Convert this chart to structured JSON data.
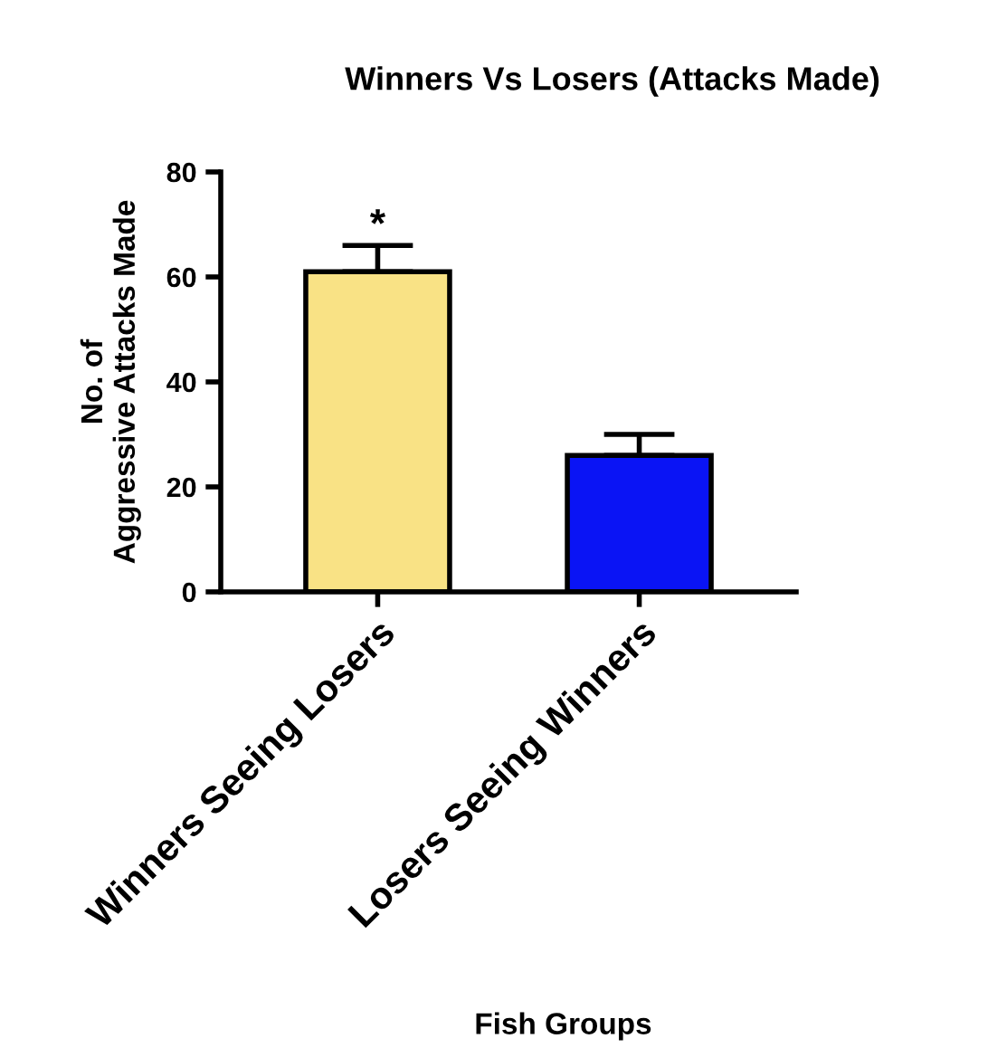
{
  "chart_data": {
    "type": "bar",
    "title": "Winners Vs Losers (Attacks Made)",
    "xlabel": "Fish Groups",
    "ylabel": "No. of\nAggressive Attacks Made",
    "categories": [
      "Winners Seeing Losers",
      "Losers Seeing Winners"
    ],
    "values": [
      61,
      26
    ],
    "colors": [
      "#f9e285",
      "#0a14f5"
    ],
    "errors": [
      [
        61,
        66
      ],
      [
        26,
        30
      ]
    ],
    "ylim": [
      0,
      80
    ],
    "yticks": [
      0,
      20,
      40,
      60,
      80
    ],
    "grid": false,
    "annotations": [
      "*"
    ]
  }
}
